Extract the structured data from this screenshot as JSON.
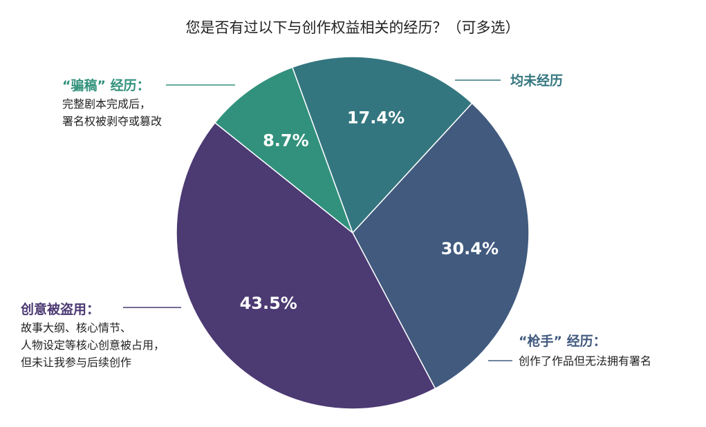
{
  "chart_data": {
    "type": "pie",
    "title": "您是否有过以下与创作权益相关的经历？（可多选）",
    "slices": [
      {
        "label": "均未经历",
        "value": 17.4,
        "value_label": "17.4%",
        "color": "#34767f",
        "desc": []
      },
      {
        "label": "“枪手” 经历：",
        "value": 30.4,
        "value_label": "30.4%",
        "color": "#415a7e",
        "desc": [
          "创作了作品但无法拥有署名"
        ]
      },
      {
        "label": "创意被盗用：",
        "value": 43.5,
        "value_label": "43.5%",
        "color": "#4c3a73",
        "desc": [
          "故事大纲、核心情节、",
          "人物设定等核心创意被占用，",
          "但未让我参与后续创作"
        ]
      },
      {
        "label": "“骗稿” 经历：",
        "value": 8.7,
        "value_label": "8.7%",
        "color": "#31917c",
        "desc": [
          "完整剧本完成后，",
          "署名权被剥夺或篡改"
        ]
      }
    ],
    "start_angle_deg": -20,
    "direction": "clockwise",
    "legend": "none"
  }
}
